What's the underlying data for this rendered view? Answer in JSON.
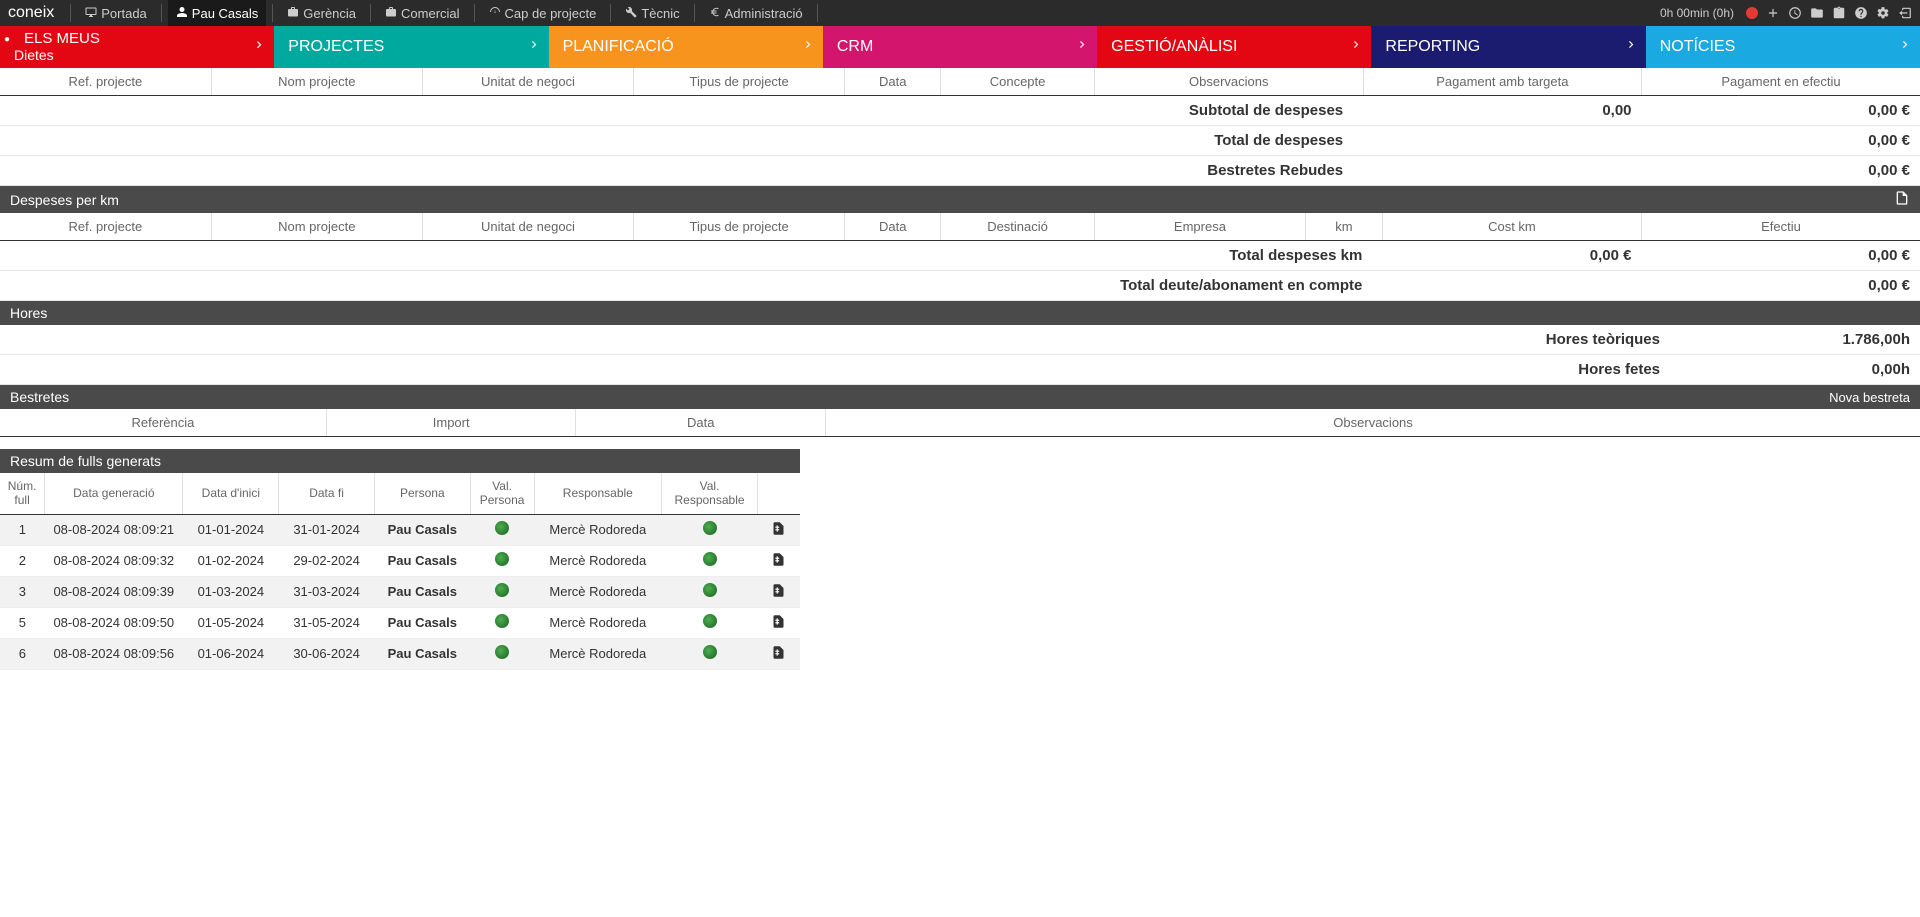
{
  "brand": "coneix",
  "timer": "0h 00min (0h)",
  "top_nav": [
    {
      "label": "Portada",
      "icon": "monitor"
    },
    {
      "label": "Pau Casals",
      "icon": "user",
      "active": true
    },
    {
      "label": "Gerència",
      "icon": "briefcase"
    },
    {
      "label": "Comercial",
      "icon": "briefcase"
    },
    {
      "label": "Cap de projecte",
      "icon": "gauge"
    },
    {
      "label": "Tècnic",
      "icon": "wrench"
    },
    {
      "label": "Administració",
      "icon": "euro"
    }
  ],
  "main_tabs": [
    {
      "label": "ELS MEUS",
      "sub": "Dietes",
      "cls": "red",
      "bullet": true
    },
    {
      "label": "PROJECTES",
      "cls": "teal"
    },
    {
      "label": "PLANIFICACIÓ",
      "cls": "orange"
    },
    {
      "label": "CRM",
      "cls": "pink"
    },
    {
      "label": "GESTIÓ/ANÀLISI",
      "cls": "red2"
    },
    {
      "label": "REPORTING",
      "cls": "navy"
    },
    {
      "label": "NOTÍCIES",
      "cls": "blue"
    }
  ],
  "despeses_cols": [
    "Ref. projecte",
    "Nom projecte",
    "Unitat de negoci",
    "Tipus de projecte",
    "Data",
    "Concepte",
    "Observacions",
    "Pagament amb targeta",
    "Pagament en efectiu"
  ],
  "despeses_sums": [
    {
      "label": "Subtotal de despeses",
      "mid": "0,00",
      "right": "0,00 €"
    },
    {
      "label": "Total de despeses",
      "mid": "",
      "right": "0,00 €"
    },
    {
      "label": "Bestretes Rebudes",
      "mid": "",
      "right": "0,00 €"
    }
  ],
  "km_section": "Despeses per km",
  "km_cols": [
    "Ref. projecte",
    "Nom projecte",
    "Unitat de negoci",
    "Tipus de projecte",
    "Data",
    "Destinació",
    "Empresa",
    "km",
    "Cost km",
    "Efectiu"
  ],
  "km_sums": [
    {
      "label": "Total despeses km",
      "mid": "0,00 €",
      "right": "0,00 €"
    },
    {
      "label": "Total deute/abonament en compte",
      "mid": "",
      "right": "0,00 €"
    }
  ],
  "hores_section": "Hores",
  "hores_sums": [
    {
      "label": "Hores teòriques",
      "right": "1.786,00h"
    },
    {
      "label": "Hores fetes",
      "right": "0,00h"
    }
  ],
  "bestretes_section": "Bestretes",
  "bestretes_link": "Nova bestreta",
  "bestretes_cols": [
    "Referència",
    "Import",
    "Data",
    "Observacions"
  ],
  "fulls_section": "Resum de fulls generats",
  "fulls_cols": [
    "Núm. full",
    "Data generació",
    "Data d'inici",
    "Data fi",
    "Persona",
    "Val. Persona",
    "Responsable",
    "Val. Responsable",
    ""
  ],
  "fulls_rows": [
    {
      "num": "1",
      "gen": "08-08-2024 08:09:21",
      "ini": "01-01-2024",
      "fi": "31-01-2024",
      "pers": "Pau Casals",
      "resp": "Mercè Rodoreda"
    },
    {
      "num": "2",
      "gen": "08-08-2024 08:09:32",
      "ini": "01-02-2024",
      "fi": "29-02-2024",
      "pers": "Pau Casals",
      "resp": "Mercè Rodoreda"
    },
    {
      "num": "3",
      "gen": "08-08-2024 08:09:39",
      "ini": "01-03-2024",
      "fi": "31-03-2024",
      "pers": "Pau Casals",
      "resp": "Mercè Rodoreda"
    },
    {
      "num": "5",
      "gen": "08-08-2024 08:09:50",
      "ini": "01-05-2024",
      "fi": "31-05-2024",
      "pers": "Pau Casals",
      "resp": "Mercè Rodoreda"
    },
    {
      "num": "6",
      "gen": "08-08-2024 08:09:56",
      "ini": "01-06-2024",
      "fi": "30-06-2024",
      "pers": "Pau Casals",
      "resp": "Mercè Rodoreda"
    }
  ]
}
